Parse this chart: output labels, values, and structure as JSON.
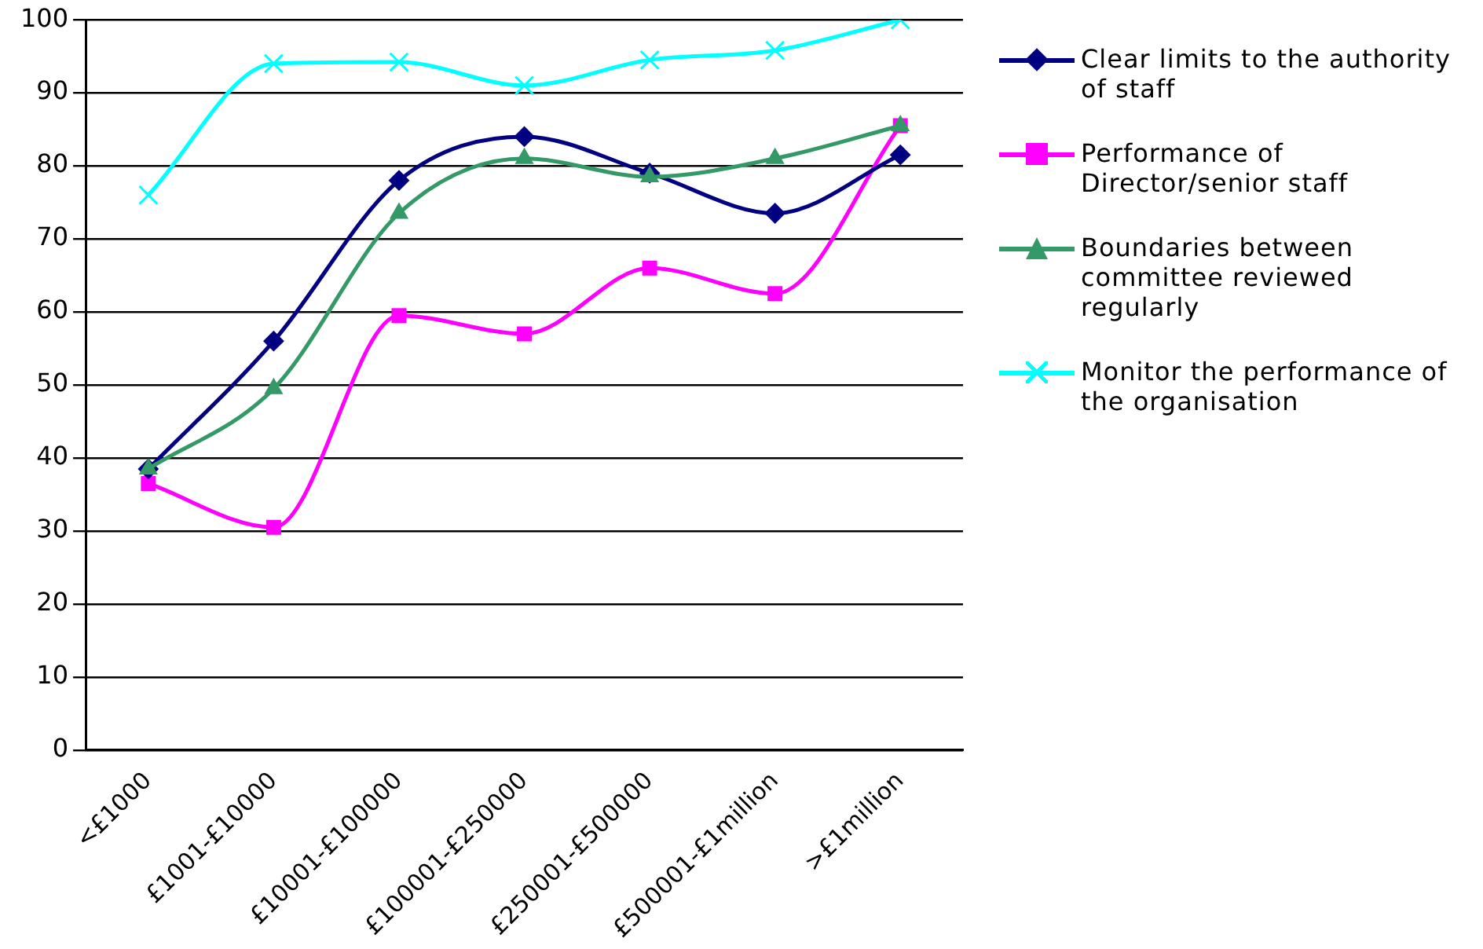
{
  "chart_data": {
    "type": "line",
    "categories": [
      "<£1000",
      "£1001-£10000",
      "£10001-£100000",
      "£100001-£250000",
      "£250001-£500000",
      "£500001-£1million",
      ">£1million"
    ],
    "series": [
      {
        "name": "Clear limits to the authority of staff",
        "color": "#000080",
        "marker": "diamond",
        "values": [
          38.5,
          56,
          78,
          84,
          79,
          73.5,
          81.5
        ]
      },
      {
        "name": "Performance of Director/senior staff",
        "color": "#ff00ff",
        "marker": "square",
        "values": [
          36.5,
          30.5,
          59.5,
          57,
          66,
          62.5,
          85.5
        ]
      },
      {
        "name": "Boundaries between committee reviewed regularly",
        "color": "#339966",
        "marker": "triangle",
        "values": [
          38.5,
          49.5,
          73.5,
          81,
          78.5,
          81,
          85.5
        ]
      },
      {
        "name": "Monitor the performance of the organisation",
        "color": "#00ffff",
        "marker": "cross",
        "values": [
          76,
          94,
          94.2,
          91,
          94.5,
          95.8,
          100
        ]
      }
    ],
    "ylim": [
      0,
      100
    ],
    "yticks": [
      0,
      10,
      20,
      30,
      40,
      50,
      60,
      70,
      80,
      90,
      100
    ],
    "grid": "y",
    "legend": "right"
  }
}
